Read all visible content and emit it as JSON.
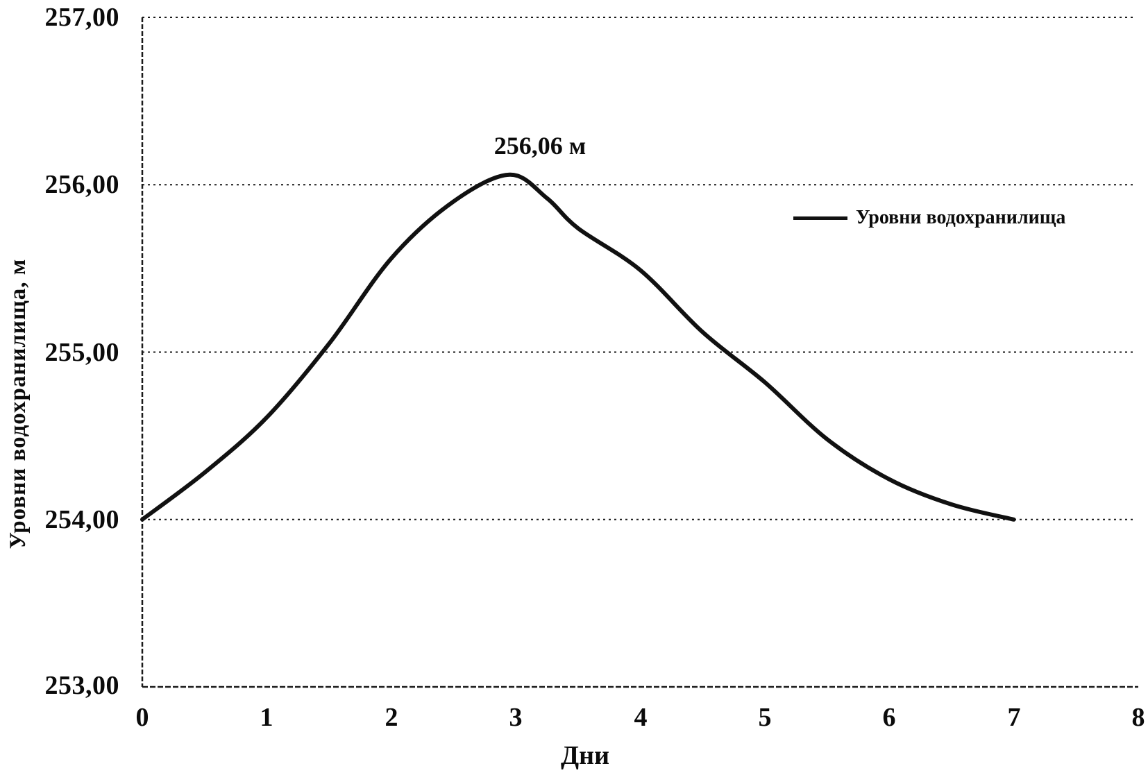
{
  "chart_data": {
    "type": "line",
    "title": "",
    "xlabel": "Дни",
    "ylabel": "Уровни водохранилища, м",
    "xlim": [
      0,
      8
    ],
    "ylim": [
      253,
      257
    ],
    "x_tick_labels": [
      "0",
      "1",
      "2",
      "3",
      "4",
      "5",
      "6",
      "7",
      "8"
    ],
    "y_tick_labels": [
      "257,00",
      "256,00",
      "255,00",
      "254,00",
      "253,00"
    ],
    "grid": "horizontal-dashed",
    "line_color": "#111111",
    "x": [
      0,
      0.5,
      1,
      1.5,
      2,
      2.5,
      2.95,
      3.25,
      3.5,
      4,
      4.5,
      5,
      5.5,
      6,
      6.5,
      7
    ],
    "series": [
      {
        "name": "Уровни водохранилища",
        "values": [
          254.0,
          254.28,
          254.61,
          255.05,
          255.56,
          255.9,
          256.06,
          255.92,
          255.74,
          255.49,
          255.12,
          254.82,
          254.48,
          254.24,
          254.09,
          254.0
        ]
      }
    ],
    "annotation": {
      "text": "256,06 м",
      "x": 2.95,
      "y": 256.06
    },
    "legend": {
      "label": "Уровни водохранилища",
      "position": "right-inside"
    }
  }
}
